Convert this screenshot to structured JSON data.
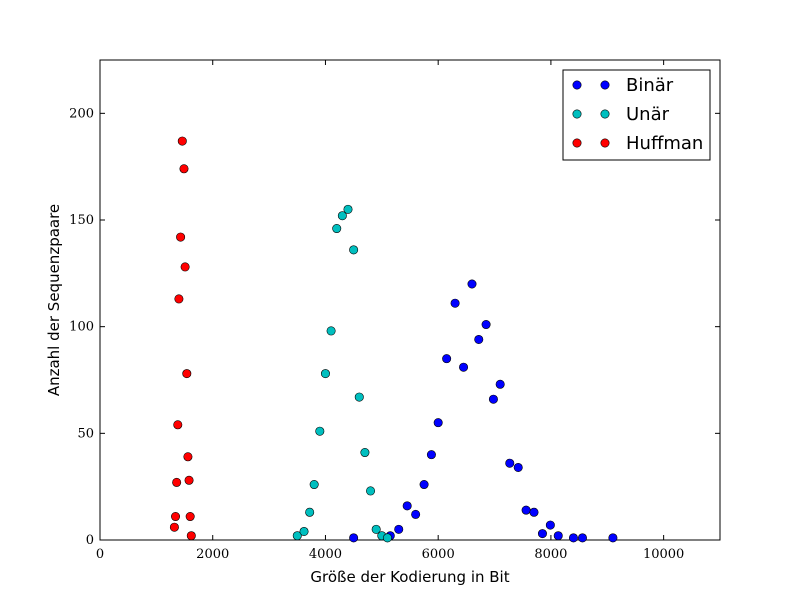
{
  "chart_data": {
    "type": "scatter",
    "xlabel": "Größe der Kodierung in Bit",
    "ylabel": "Anzahl der Sequenzpaare",
    "xlim": [
      0,
      11000
    ],
    "ylim": [
      0,
      225
    ],
    "x_ticks": [
      0,
      2000,
      4000,
      6000,
      8000,
      10000
    ],
    "y_ticks": [
      0,
      50,
      100,
      150,
      200
    ],
    "legend_position": "top-right",
    "series": [
      {
        "name": "Binär",
        "color": "#0000ff",
        "points": [
          [
            4500,
            1
          ],
          [
            5150,
            2
          ],
          [
            5300,
            5
          ],
          [
            5450,
            16
          ],
          [
            5600,
            12
          ],
          [
            5750,
            26
          ],
          [
            5880,
            40
          ],
          [
            6000,
            55
          ],
          [
            6150,
            85
          ],
          [
            6300,
            111
          ],
          [
            6450,
            81
          ],
          [
            6600,
            120
          ],
          [
            6720,
            94
          ],
          [
            6850,
            101
          ],
          [
            6980,
            66
          ],
          [
            7100,
            73
          ],
          [
            7270,
            36
          ],
          [
            7420,
            34
          ],
          [
            7560,
            14
          ],
          [
            7700,
            13
          ],
          [
            7850,
            3
          ],
          [
            7990,
            7
          ],
          [
            8130,
            2
          ],
          [
            8400,
            1
          ],
          [
            8560,
            1
          ],
          [
            9100,
            1
          ]
        ]
      },
      {
        "name": "Unär",
        "color": "#00bfbf",
        "points": [
          [
            3500,
            2
          ],
          [
            3620,
            4
          ],
          [
            3720,
            13
          ],
          [
            3800,
            26
          ],
          [
            3900,
            51
          ],
          [
            4000,
            78
          ],
          [
            4100,
            98
          ],
          [
            4200,
            146
          ],
          [
            4300,
            152
          ],
          [
            4400,
            155
          ],
          [
            4500,
            136
          ],
          [
            4600,
            67
          ],
          [
            4700,
            41
          ],
          [
            4800,
            23
          ],
          [
            4900,
            5
          ],
          [
            5000,
            2
          ],
          [
            5100,
            1
          ]
        ]
      },
      {
        "name": "Huffman",
        "color": "#ff0000",
        "points": [
          [
            1320,
            6
          ],
          [
            1340,
            11
          ],
          [
            1360,
            27
          ],
          [
            1380,
            54
          ],
          [
            1400,
            113
          ],
          [
            1430,
            142
          ],
          [
            1460,
            187
          ],
          [
            1490,
            174
          ],
          [
            1510,
            128
          ],
          [
            1540,
            78
          ],
          [
            1560,
            39
          ],
          [
            1580,
            28
          ],
          [
            1600,
            11
          ],
          [
            1620,
            2
          ]
        ]
      }
    ]
  }
}
